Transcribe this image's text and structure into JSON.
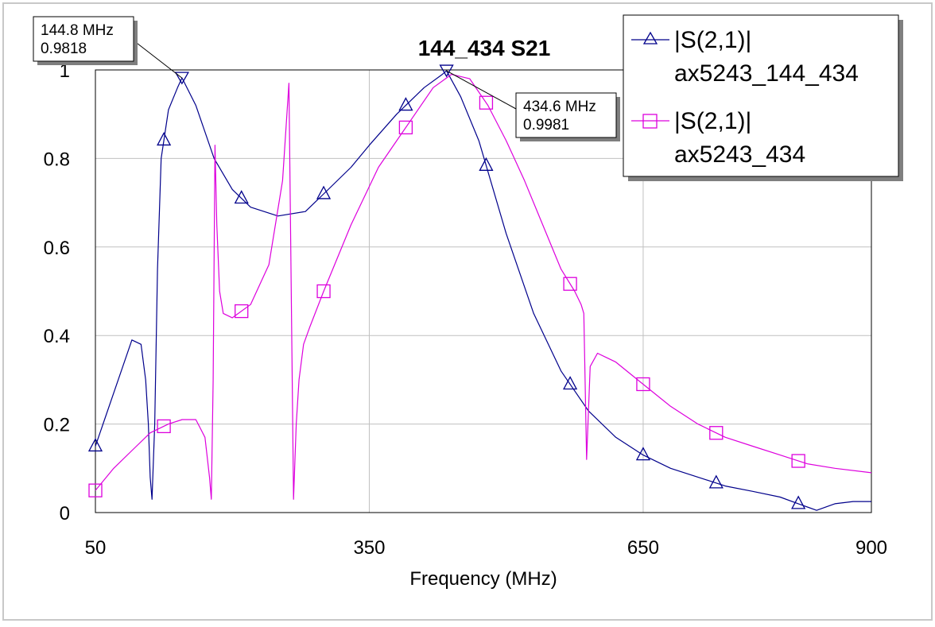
{
  "chart_data": {
    "type": "line",
    "title": "144_434 S21",
    "xlabel": "Frequency (MHz)",
    "ylabel": "",
    "xlim": [
      50,
      900
    ],
    "ylim": [
      0,
      1
    ],
    "x_ticks": [
      "50",
      "350",
      "650",
      "900"
    ],
    "y_ticks": [
      "0",
      "0.2",
      "0.4",
      "0.6",
      "0.8",
      "1"
    ],
    "grid": true,
    "legend_position": "top-right",
    "series": [
      {
        "name": "|S(2,1)| ax5243_144_434",
        "legend_line1": "|S(2,1)|",
        "legend_line2": "ax5243_144_434",
        "color": "#00008b",
        "marker": "triangle",
        "x": [
          50,
          60,
          75,
          90,
          100,
          105,
          108,
          110,
          112,
          115,
          118,
          122,
          130,
          140,
          144.8,
          160,
          180,
          200,
          220,
          250,
          280,
          300,
          330,
          350,
          380,
          410,
          430,
          434.6,
          450,
          470,
          500,
          530,
          560,
          590,
          620,
          650,
          680,
          710,
          740,
          770,
          800,
          820,
          840,
          860,
          880,
          900
        ],
        "y": [
          0.15,
          0.21,
          0.3,
          0.39,
          0.38,
          0.3,
          0.2,
          0.08,
          0.03,
          0.2,
          0.55,
          0.8,
          0.91,
          0.96,
          0.982,
          0.92,
          0.8,
          0.73,
          0.69,
          0.67,
          0.68,
          0.72,
          0.78,
          0.83,
          0.9,
          0.96,
          0.99,
          0.998,
          0.94,
          0.84,
          0.63,
          0.45,
          0.32,
          0.23,
          0.17,
          0.13,
          0.1,
          0.08,
          0.06,
          0.048,
          0.035,
          0.02,
          0.005,
          0.02,
          0.025,
          0.025
        ]
      },
      {
        "name": "|S(2,1)| ax5243_434",
        "legend_line1": "|S(2,1)|",
        "legend_line2": "ax5243_434",
        "color": "#dd00dd",
        "marker": "square",
        "x": [
          50,
          70,
          90,
          110,
          130,
          145,
          160,
          170,
          175,
          177,
          179,
          181,
          183,
          186,
          190,
          200,
          220,
          240,
          255,
          262,
          264,
          267,
          270,
          273,
          278,
          285,
          300,
          330,
          360,
          380,
          400,
          420,
          440,
          460,
          480,
          500,
          520,
          540,
          560,
          575,
          582,
          585,
          588,
          592,
          600,
          620,
          650,
          680,
          710,
          740,
          770,
          800,
          830,
          860,
          900
        ],
        "y": [
          0.05,
          0.1,
          0.14,
          0.18,
          0.2,
          0.21,
          0.21,
          0.17,
          0.08,
          0.03,
          0.3,
          0.83,
          0.65,
          0.5,
          0.45,
          0.44,
          0.47,
          0.56,
          0.75,
          0.97,
          0.6,
          0.03,
          0.2,
          0.3,
          0.38,
          0.42,
          0.5,
          0.65,
          0.78,
          0.84,
          0.9,
          0.96,
          0.99,
          0.98,
          0.92,
          0.84,
          0.75,
          0.65,
          0.55,
          0.5,
          0.47,
          0.45,
          0.12,
          0.33,
          0.36,
          0.34,
          0.29,
          0.24,
          0.2,
          0.17,
          0.15,
          0.13,
          0.11,
          0.1,
          0.09
        ]
      }
    ],
    "markers_triangle_x": [
      50,
      125,
      210,
      300,
      390,
      478,
      570,
      650,
      730,
      820
    ],
    "markers_square_x": [
      50,
      125,
      210,
      300,
      390,
      478,
      570,
      650,
      730,
      820
    ],
    "annotations": [
      {
        "line1": "144.8 MHz",
        "line2": "0.9818",
        "x": 144.8,
        "y": 0.9818
      },
      {
        "line1": "434.6 MHz",
        "line2": "0.9981",
        "x": 434.6,
        "y": 0.9981
      }
    ]
  }
}
